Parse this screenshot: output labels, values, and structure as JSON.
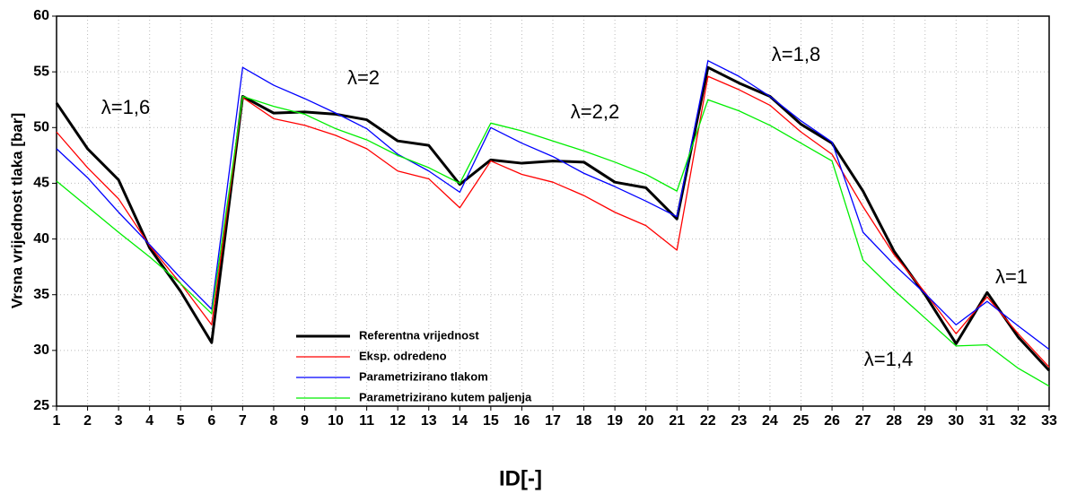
{
  "chart_data": {
    "type": "line",
    "x_label": "ID[-]",
    "y_label": "Vrsna vrijednost tlaka [bar]",
    "x": [
      1,
      2,
      3,
      4,
      5,
      6,
      7,
      8,
      9,
      10,
      11,
      12,
      13,
      14,
      15,
      16,
      17,
      18,
      19,
      20,
      21,
      22,
      23,
      24,
      25,
      26,
      27,
      28,
      29,
      30,
      31,
      32,
      33
    ],
    "series": [
      {
        "name": "Referentna vrijednost",
        "color": "#000000",
        "width": 3,
        "values": [
          52.2,
          48.1,
          45.3,
          39.2,
          35.3,
          30.7,
          52.8,
          51.3,
          51.4,
          51.2,
          50.7,
          48.8,
          48.4,
          44.9,
          47.1,
          46.8,
          47.0,
          46.9,
          45.1,
          44.6,
          41.8,
          55.4,
          54.0,
          52.8,
          50.3,
          48.6,
          44.3,
          38.9,
          35.0,
          30.6,
          35.2,
          31.2,
          28.2
        ]
      },
      {
        "name": "Eksp. odredeno",
        "color": "#ff0000",
        "width": 1.3,
        "values": [
          49.6,
          46.4,
          43.6,
          39.4,
          36.0,
          32.3,
          52.7,
          50.8,
          50.2,
          49.3,
          48.1,
          46.1,
          45.4,
          42.8,
          47.0,
          45.8,
          45.1,
          43.9,
          42.4,
          41.2,
          39.0,
          54.6,
          53.4,
          52.0,
          49.6,
          47.6,
          42.9,
          38.6,
          35.2,
          31.5,
          34.8,
          31.5,
          28.5
        ]
      },
      {
        "name": "Parametrizirano tlakom",
        "color": "#0000ff",
        "width": 1.3,
        "values": [
          48.1,
          45.5,
          42.4,
          39.5,
          36.5,
          33.7,
          55.4,
          53.8,
          52.6,
          51.3,
          49.9,
          47.6,
          46.1,
          44.2,
          50.0,
          48.6,
          47.4,
          45.9,
          44.7,
          43.4,
          42.0,
          56.0,
          54.6,
          52.8,
          50.6,
          48.7,
          40.6,
          37.7,
          35.1,
          32.3,
          34.4,
          32.2,
          30.1
        ]
      },
      {
        "name": "Parametrizirano kutem paljenja",
        "color": "#00ee00",
        "width": 1.3,
        "values": [
          45.2,
          42.9,
          40.6,
          38.4,
          36.0,
          33.3,
          52.8,
          51.9,
          51.2,
          49.9,
          48.9,
          47.5,
          46.4,
          45.0,
          50.4,
          49.7,
          48.8,
          47.9,
          46.9,
          45.8,
          44.3,
          52.5,
          51.5,
          50.2,
          48.6,
          47.0,
          38.1,
          35.4,
          32.9,
          30.4,
          30.5,
          28.4,
          26.8
        ]
      }
    ],
    "annotations": [
      "λ=1,6",
      "λ=2",
      "λ=2,2",
      "λ=1,8",
      "λ=1,4",
      "λ=1"
    ],
    "xlim": [
      1,
      33
    ],
    "xticks": [
      1,
      2,
      3,
      4,
      5,
      6,
      7,
      8,
      9,
      10,
      11,
      12,
      13,
      14,
      15,
      16,
      17,
      18,
      19,
      20,
      21,
      22,
      23,
      24,
      25,
      26,
      27,
      28,
      29,
      30,
      31,
      32,
      33
    ],
    "ylim": [
      25,
      60
    ],
    "yticks": [
      25,
      30,
      35,
      40,
      45,
      50,
      55,
      60
    ],
    "grid": true
  }
}
